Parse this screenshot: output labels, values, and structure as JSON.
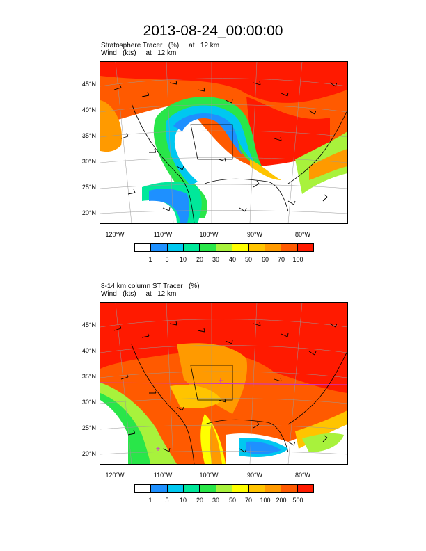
{
  "page": {
    "title": "2013-08-24_00:00:00"
  },
  "panels": [
    {
      "subtitle1": "Stratosphere Tracer   (%)     at   12 km",
      "subtitle2": "Wind   (kts)     at   12 km",
      "lat_labels": [
        "45°N",
        "40°N",
        "35°N",
        "30°N",
        "25°N",
        "20°N"
      ],
      "lon_labels": [
        "120°W",
        "110°W",
        "100°W",
        "90°W",
        "80°W"
      ],
      "colorbar_colors": [
        "#ffffff",
        "#1e90ff",
        "#00c8f0",
        "#00e89a",
        "#29e649",
        "#a8f23c",
        "#ffff00",
        "#ffc400",
        "#ff9a00",
        "#ff5a00",
        "#ff1a00"
      ],
      "colorbar_labels": [
        "1",
        "5",
        "10",
        "20",
        "30",
        "40",
        "50",
        "60",
        "70",
        "100"
      ]
    },
    {
      "subtitle1": "8-14 km column ST Tracer   (%)",
      "subtitle2": "Wind   (kts)     at   12 km",
      "lat_labels": [
        "45°N",
        "40°N",
        "35°N",
        "30°N",
        "25°N",
        "20°N"
      ],
      "lon_labels": [
        "120°W",
        "110°W",
        "100°W",
        "90°W",
        "80°W"
      ],
      "colorbar_colors": [
        "#ffffff",
        "#1e90ff",
        "#00c8f0",
        "#00e89a",
        "#29e649",
        "#a8f23c",
        "#ffff00",
        "#ffc400",
        "#ff9a00",
        "#ff5a00",
        "#ff1a00"
      ],
      "colorbar_labels": [
        "1",
        "5",
        "10",
        "20",
        "30",
        "50",
        "70",
        "100",
        "200",
        "500"
      ]
    }
  ]
}
